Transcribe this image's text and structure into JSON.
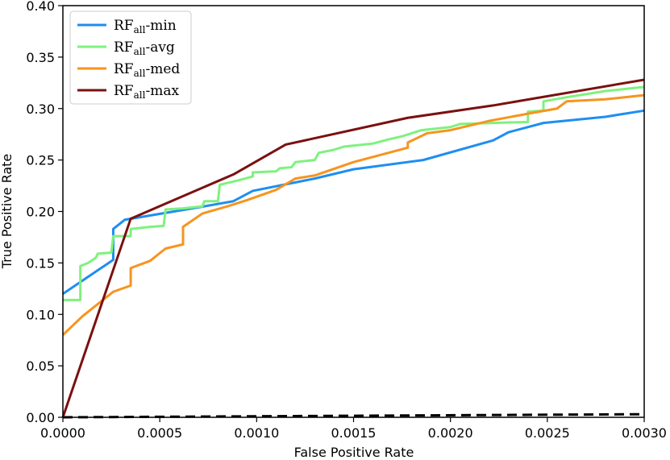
{
  "chart_data": {
    "type": "line",
    "xlabel": "False Positive Rate",
    "ylabel": "True Positive Rate",
    "xlim": [
      0,
      0.003
    ],
    "ylim": [
      0,
      0.4
    ],
    "xticks": [
      "0.0000",
      "0.0005",
      "0.0010",
      "0.0015",
      "0.0020",
      "0.0025",
      "0.0030"
    ],
    "yticks": [
      "0.00",
      "0.05",
      "0.10",
      "0.15",
      "0.20",
      "0.25",
      "0.30",
      "0.35",
      "0.40"
    ],
    "grid": false,
    "legend_position": "top-left",
    "series": [
      {
        "name": "RF-min",
        "label_base": "RF",
        "label_sub": "all",
        "label_suffix": "-min",
        "color": "#1f8ef1",
        "points": [
          [
            0,
            0.12
          ],
          [
            0.00026,
            0.153
          ],
          [
            0.00026,
            0.183
          ],
          [
            0.00032,
            0.192
          ],
          [
            0.0007,
            0.204
          ],
          [
            0.00088,
            0.21
          ],
          [
            0.00098,
            0.22
          ],
          [
            0.0013,
            0.232
          ],
          [
            0.0015,
            0.241
          ],
          [
            0.00186,
            0.25
          ],
          [
            0.00222,
            0.269
          ],
          [
            0.0023,
            0.277
          ],
          [
            0.00248,
            0.286
          ],
          [
            0.0028,
            0.292
          ],
          [
            0.003,
            0.298
          ]
        ]
      },
      {
        "name": "RF-avg",
        "label_base": "RF",
        "label_sub": "all",
        "label_suffix": "-avg",
        "color": "#7ef27e",
        "points": [
          [
            0,
            0.114
          ],
          [
            9e-05,
            0.114
          ],
          [
            9e-05,
            0.147
          ],
          [
            0.00013,
            0.15
          ],
          [
            0.00017,
            0.155
          ],
          [
            0.00018,
            0.159
          ],
          [
            0.00025,
            0.16
          ],
          [
            0.00026,
            0.176
          ],
          [
            0.00035,
            0.176
          ],
          [
            0.00035,
            0.183
          ],
          [
            0.00045,
            0.185
          ],
          [
            0.00052,
            0.186
          ],
          [
            0.00053,
            0.202
          ],
          [
            0.00062,
            0.203
          ],
          [
            0.00072,
            0.205
          ],
          [
            0.00073,
            0.21
          ],
          [
            0.0008,
            0.21
          ],
          [
            0.00081,
            0.226
          ],
          [
            0.0009,
            0.23
          ],
          [
            0.00098,
            0.234
          ],
          [
            0.00098,
            0.238
          ],
          [
            0.0011,
            0.239
          ],
          [
            0.00112,
            0.242
          ],
          [
            0.00118,
            0.243
          ],
          [
            0.0012,
            0.248
          ],
          [
            0.0013,
            0.25
          ],
          [
            0.00132,
            0.257
          ],
          [
            0.0014,
            0.26
          ],
          [
            0.00145,
            0.263
          ],
          [
            0.0016,
            0.266
          ],
          [
            0.00168,
            0.27
          ],
          [
            0.00175,
            0.273
          ],
          [
            0.00185,
            0.279
          ],
          [
            0.002,
            0.282
          ],
          [
            0.00205,
            0.285
          ],
          [
            0.0024,
            0.287
          ],
          [
            0.0024,
            0.297
          ],
          [
            0.00248,
            0.298
          ],
          [
            0.00248,
            0.307
          ],
          [
            0.0026,
            0.311
          ],
          [
            0.0028,
            0.317
          ],
          [
            0.003,
            0.321
          ]
        ]
      },
      {
        "name": "RF-med",
        "label_base": "RF",
        "label_sub": "all",
        "label_suffix": "-med",
        "color": "#f7941e",
        "points": [
          [
            0,
            0.08
          ],
          [
            0.0001,
            0.098
          ],
          [
            0.00018,
            0.11
          ],
          [
            0.00026,
            0.122
          ],
          [
            0.00035,
            0.128
          ],
          [
            0.00035,
            0.145
          ],
          [
            0.00045,
            0.152
          ],
          [
            0.00053,
            0.164
          ],
          [
            0.00062,
            0.168
          ],
          [
            0.00062,
            0.185
          ],
          [
            0.00072,
            0.198
          ],
          [
            0.00085,
            0.205
          ],
          [
            0.00095,
            0.211
          ],
          [
            0.0011,
            0.221
          ],
          [
            0.0012,
            0.232
          ],
          [
            0.0013,
            0.235
          ],
          [
            0.0015,
            0.248
          ],
          [
            0.00178,
            0.262
          ],
          [
            0.00178,
            0.267
          ],
          [
            0.00188,
            0.276
          ],
          [
            0.002,
            0.279
          ],
          [
            0.0022,
            0.288
          ],
          [
            0.0024,
            0.295
          ],
          [
            0.00255,
            0.3
          ],
          [
            0.0026,
            0.307
          ],
          [
            0.0028,
            0.309
          ],
          [
            0.003,
            0.313
          ]
        ]
      },
      {
        "name": "RF-max",
        "label_base": "RF",
        "label_sub": "all",
        "label_suffix": "-max",
        "color": "#7b1010",
        "points": [
          [
            0,
            0
          ],
          [
            0.00035,
            0.193
          ],
          [
            0.00088,
            0.236
          ],
          [
            0.00115,
            0.265
          ],
          [
            0.00178,
            0.291
          ],
          [
            0.00222,
            0.303
          ],
          [
            0.003,
            0.328
          ]
        ]
      }
    ],
    "reference_line": {
      "style": "dashed",
      "color": "#000000",
      "points": [
        [
          0,
          0
        ],
        [
          0.003,
          0.003
        ]
      ]
    }
  }
}
